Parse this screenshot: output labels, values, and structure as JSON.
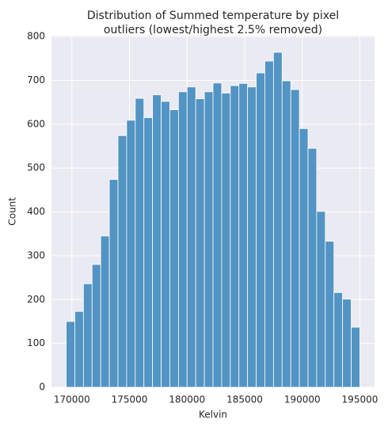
{
  "chart_data": {
    "type": "histogram",
    "title": [
      "Distribution of Summed temperature by pixel",
      "outliers (lowest/highest 2.5% removed)"
    ],
    "xlabel": "Kelvin",
    "ylabel": "Count",
    "bins": [
      169500,
      170250,
      171000,
      171750,
      172500,
      173250,
      174000,
      174750,
      175500,
      176250,
      177000,
      177750,
      178500,
      179250,
      180000,
      180750,
      181500,
      182250,
      183000,
      183750,
      184500,
      185250,
      186000,
      186750,
      187500,
      188250,
      189000,
      189750,
      190500,
      191250,
      192000,
      192750,
      193500,
      194250,
      195000
    ],
    "values": [
      150,
      173,
      236,
      280,
      345,
      474,
      574,
      609,
      659,
      615,
      667,
      652,
      633,
      674,
      685,
      658,
      674,
      694,
      671,
      688,
      693,
      685,
      717,
      744,
      764,
      699,
      679,
      590,
      545,
      401,
      333,
      216,
      201,
      137
    ],
    "color": "#5294c3",
    "xlim": [
      168225,
      196275
    ],
    "ylim": [
      0,
      802
    ],
    "xticks": [
      170000,
      175000,
      180000,
      185000,
      190000,
      195000
    ],
    "yticks": [
      0,
      100,
      200,
      300,
      400,
      500,
      600,
      700,
      800
    ],
    "grid": true
  }
}
